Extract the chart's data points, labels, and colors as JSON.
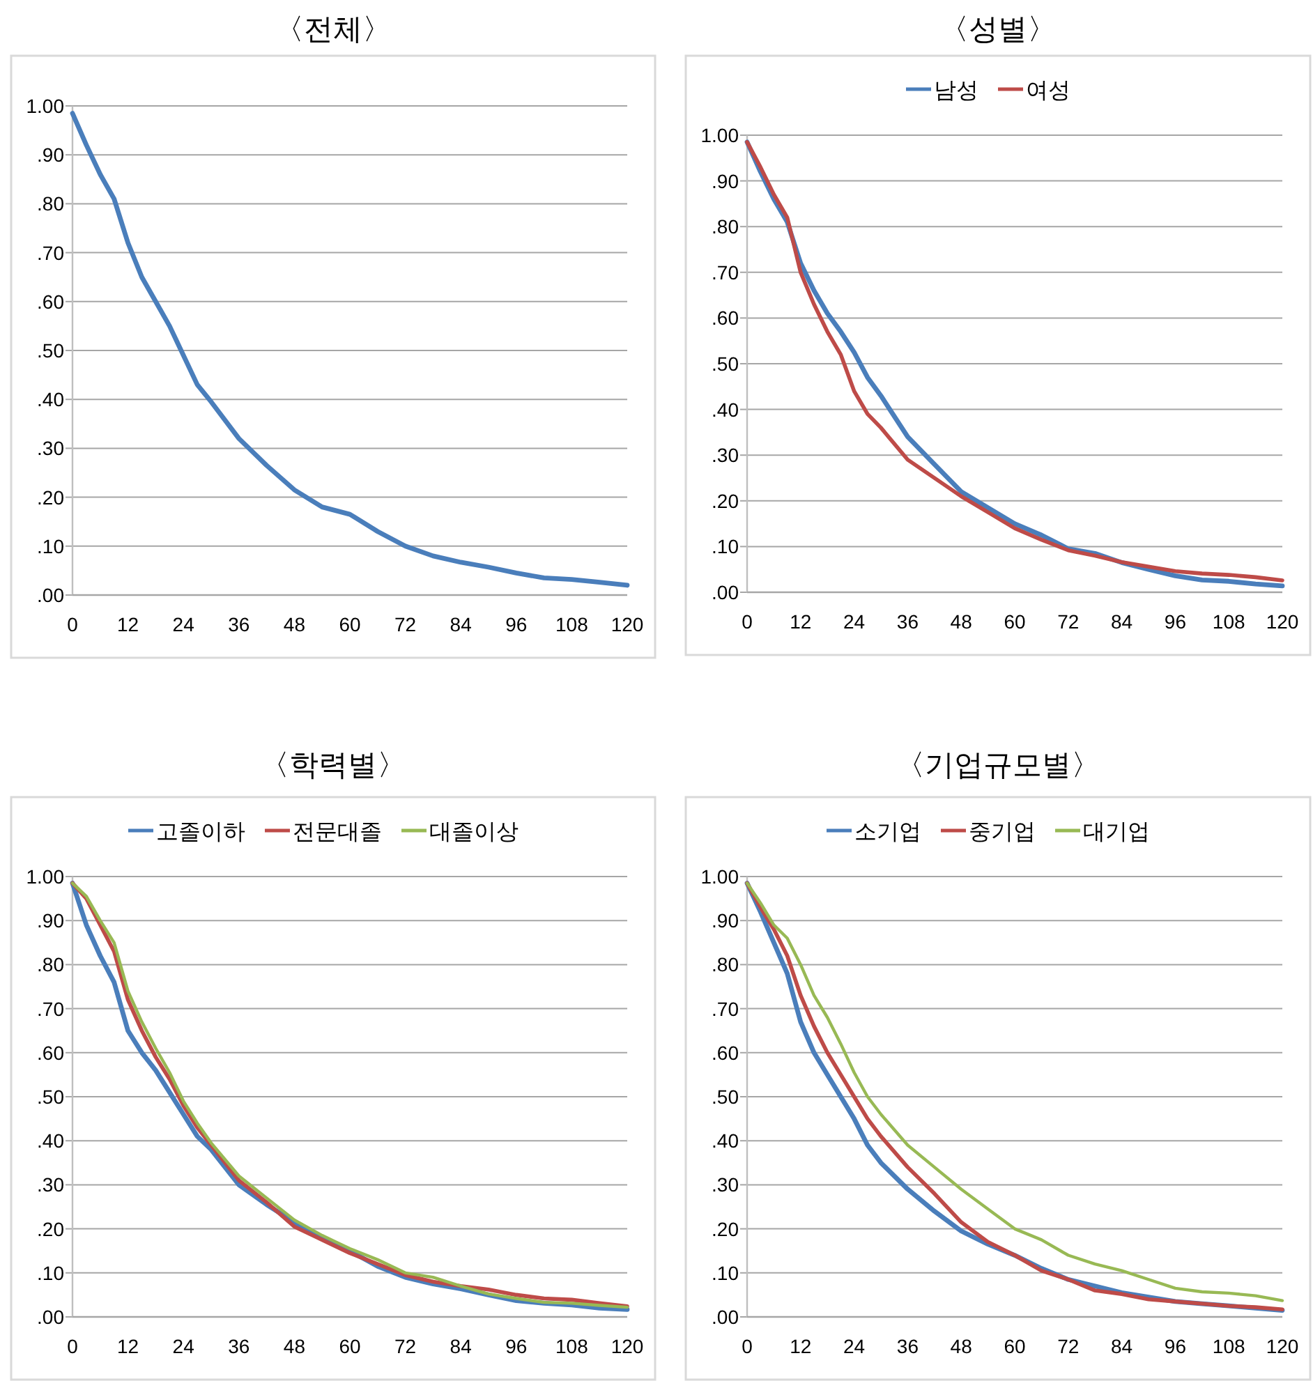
{
  "chart_data": [
    {
      "type": "line",
      "title": "〈전체〉",
      "x": [
        0,
        3,
        6,
        9,
        12,
        15,
        18,
        21,
        24,
        27,
        30,
        36,
        42,
        48,
        54,
        60,
        66,
        72,
        78,
        84,
        90,
        96,
        102,
        108,
        114,
        120
      ],
      "values": [
        0.985,
        0.92,
        0.86,
        0.81,
        0.72,
        0.65,
        0.6,
        0.55,
        0.49,
        0.43,
        0.395,
        0.32,
        0.265,
        0.215,
        0.18,
        0.165,
        0.13,
        0.1,
        0.08,
        0.067,
        0.057,
        0.045,
        0.035,
        0.032,
        0.026,
        0.02
      ],
      "color": "#4a7ebb",
      "xlim": [
        0,
        120
      ],
      "xticks": [
        0,
        12,
        24,
        36,
        48,
        60,
        72,
        84,
        96,
        108,
        120
      ],
      "ylim": [
        0,
        1
      ],
      "yticks": [
        {
          "value": 0,
          "label": ".00"
        },
        {
          "value": 0.1,
          "label": ".10"
        },
        {
          "value": 0.2,
          "label": ".20"
        },
        {
          "value": 0.3,
          "label": ".30"
        },
        {
          "value": 0.4,
          "label": ".40"
        },
        {
          "value": 0.5,
          "label": ".50"
        },
        {
          "value": 0.6,
          "label": ".60"
        },
        {
          "value": 0.7,
          "label": ".70"
        },
        {
          "value": 0.8,
          "label": ".80"
        },
        {
          "value": 0.9,
          "label": ".90"
        },
        {
          "value": 1,
          "label": "1.00"
        }
      ],
      "grid": "y"
    },
    {
      "type": "line",
      "title": "〈성별〉",
      "x": [
        0,
        3,
        6,
        9,
        12,
        15,
        18,
        21,
        24,
        27,
        30,
        36,
        42,
        48,
        54,
        60,
        66,
        72,
        78,
        84,
        90,
        96,
        102,
        108,
        114,
        120
      ],
      "series": [
        {
          "name": "남성",
          "color": "#4a7ebb",
          "values": [
            0.985,
            0.92,
            0.86,
            0.81,
            0.72,
            0.66,
            0.61,
            0.57,
            0.525,
            0.47,
            0.43,
            0.34,
            0.28,
            0.22,
            0.185,
            0.15,
            0.125,
            0.095,
            0.085,
            0.065,
            0.05,
            0.036,
            0.027,
            0.024,
            0.018,
            0.014
          ]
        },
        {
          "name": "여성",
          "color": "#be4b48",
          "values": [
            0.985,
            0.93,
            0.87,
            0.82,
            0.7,
            0.63,
            0.57,
            0.52,
            0.44,
            0.39,
            0.36,
            0.29,
            0.25,
            0.21,
            0.175,
            0.14,
            0.115,
            0.092,
            0.08,
            0.066,
            0.056,
            0.046,
            0.041,
            0.038,
            0.033,
            0.026
          ]
        }
      ],
      "xlim": [
        0,
        120
      ],
      "xticks": [
        0,
        12,
        24,
        36,
        48,
        60,
        72,
        84,
        96,
        108,
        120
      ],
      "ylim": [
        0,
        1
      ],
      "yticks": [
        {
          "value": 0,
          "label": ".00"
        },
        {
          "value": 0.1,
          "label": ".10"
        },
        {
          "value": 0.2,
          "label": ".20"
        },
        {
          "value": 0.3,
          "label": ".30"
        },
        {
          "value": 0.4,
          "label": ".40"
        },
        {
          "value": 0.5,
          "label": ".50"
        },
        {
          "value": 0.6,
          "label": ".60"
        },
        {
          "value": 0.7,
          "label": ".70"
        },
        {
          "value": 0.8,
          "label": ".80"
        },
        {
          "value": 0.9,
          "label": ".90"
        },
        {
          "value": 1,
          "label": "1.00"
        }
      ],
      "grid": "y",
      "legend": "top"
    },
    {
      "type": "line",
      "title": "〈학력별〉",
      "x": [
        0,
        3,
        6,
        9,
        12,
        15,
        18,
        21,
        24,
        27,
        30,
        36,
        42,
        48,
        54,
        60,
        66,
        72,
        78,
        84,
        90,
        96,
        102,
        108,
        114,
        120
      ],
      "series": [
        {
          "name": "고졸이하",
          "color": "#4a7ebb",
          "values": [
            0.985,
            0.89,
            0.82,
            0.76,
            0.65,
            0.6,
            0.56,
            0.51,
            0.46,
            0.41,
            0.38,
            0.3,
            0.255,
            0.215,
            0.18,
            0.15,
            0.115,
            0.09,
            0.075,
            0.064,
            0.05,
            0.037,
            0.031,
            0.027,
            0.02,
            0.017
          ]
        },
        {
          "name": "전문대졸",
          "color": "#be4b48",
          "values": [
            0.985,
            0.95,
            0.89,
            0.83,
            0.72,
            0.65,
            0.59,
            0.54,
            0.48,
            0.43,
            0.39,
            0.31,
            0.26,
            0.205,
            0.175,
            0.145,
            0.12,
            0.095,
            0.08,
            0.07,
            0.062,
            0.05,
            0.042,
            0.039,
            0.031,
            0.024
          ]
        },
        {
          "name": "대졸이상",
          "color": "#98b954",
          "values": [
            0.985,
            0.955,
            0.9,
            0.85,
            0.74,
            0.67,
            0.61,
            0.555,
            0.49,
            0.44,
            0.395,
            0.32,
            0.27,
            0.22,
            0.185,
            0.155,
            0.13,
            0.1,
            0.09,
            0.07,
            0.052,
            0.042,
            0.033,
            0.031,
            0.026,
            0.022
          ]
        }
      ],
      "xlim": [
        0,
        120
      ],
      "xticks": [
        0,
        12,
        24,
        36,
        48,
        60,
        72,
        84,
        96,
        108,
        120
      ],
      "ylim": [
        0,
        1
      ],
      "yticks": [
        {
          "value": 0,
          "label": ".00"
        },
        {
          "value": 0.1,
          "label": ".10"
        },
        {
          "value": 0.2,
          "label": ".20"
        },
        {
          "value": 0.3,
          "label": ".30"
        },
        {
          "value": 0.4,
          "label": ".40"
        },
        {
          "value": 0.5,
          "label": ".50"
        },
        {
          "value": 0.6,
          "label": ".60"
        },
        {
          "value": 0.7,
          "label": ".70"
        },
        {
          "value": 0.8,
          "label": ".80"
        },
        {
          "value": 0.9,
          "label": ".90"
        },
        {
          "value": 1,
          "label": "1.00"
        }
      ],
      "grid": "y",
      "legend": "top"
    },
    {
      "type": "line",
      "title": "〈기업규모별〉",
      "x": [
        0,
        3,
        6,
        9,
        12,
        15,
        18,
        21,
        24,
        27,
        30,
        36,
        42,
        48,
        54,
        60,
        66,
        72,
        78,
        84,
        90,
        96,
        102,
        108,
        114,
        120
      ],
      "series": [
        {
          "name": "소기업",
          "color": "#4a7ebb",
          "values": [
            0.985,
            0.92,
            0.85,
            0.78,
            0.67,
            0.6,
            0.55,
            0.5,
            0.45,
            0.39,
            0.35,
            0.29,
            0.24,
            0.195,
            0.165,
            0.14,
            0.11,
            0.085,
            0.07,
            0.055,
            0.045,
            0.035,
            0.03,
            0.025,
            0.02,
            0.015
          ]
        },
        {
          "name": "중기업",
          "color": "#be4b48",
          "values": [
            0.985,
            0.93,
            0.88,
            0.82,
            0.73,
            0.66,
            0.6,
            0.55,
            0.5,
            0.45,
            0.41,
            0.34,
            0.28,
            0.215,
            0.17,
            0.14,
            0.105,
            0.085,
            0.06,
            0.052,
            0.04,
            0.035,
            0.03,
            0.025,
            0.022,
            0.017
          ]
        },
        {
          "name": "대기업",
          "color": "#98b954",
          "values": [
            0.985,
            0.94,
            0.89,
            0.86,
            0.8,
            0.73,
            0.68,
            0.62,
            0.555,
            0.5,
            0.46,
            0.39,
            0.34,
            0.29,
            0.245,
            0.2,
            0.175,
            0.14,
            0.12,
            0.105,
            0.085,
            0.065,
            0.057,
            0.054,
            0.048,
            0.037
          ]
        }
      ],
      "xlim": [
        0,
        120
      ],
      "xticks": [
        0,
        12,
        24,
        36,
        48,
        60,
        72,
        84,
        96,
        108,
        120
      ],
      "ylim": [
        0,
        1
      ],
      "yticks": [
        {
          "value": 0,
          "label": ".00"
        },
        {
          "value": 0.1,
          "label": ".10"
        },
        {
          "value": 0.2,
          "label": ".20"
        },
        {
          "value": 0.3,
          "label": ".30"
        },
        {
          "value": 0.4,
          "label": ".40"
        },
        {
          "value": 0.5,
          "label": ".50"
        },
        {
          "value": 0.6,
          "label": ".60"
        },
        {
          "value": 0.7,
          "label": ".70"
        },
        {
          "value": 0.8,
          "label": ".80"
        },
        {
          "value": 0.9,
          "label": ".90"
        },
        {
          "value": 1,
          "label": "1.00"
        }
      ],
      "grid": "y",
      "legend": "top"
    }
  ]
}
